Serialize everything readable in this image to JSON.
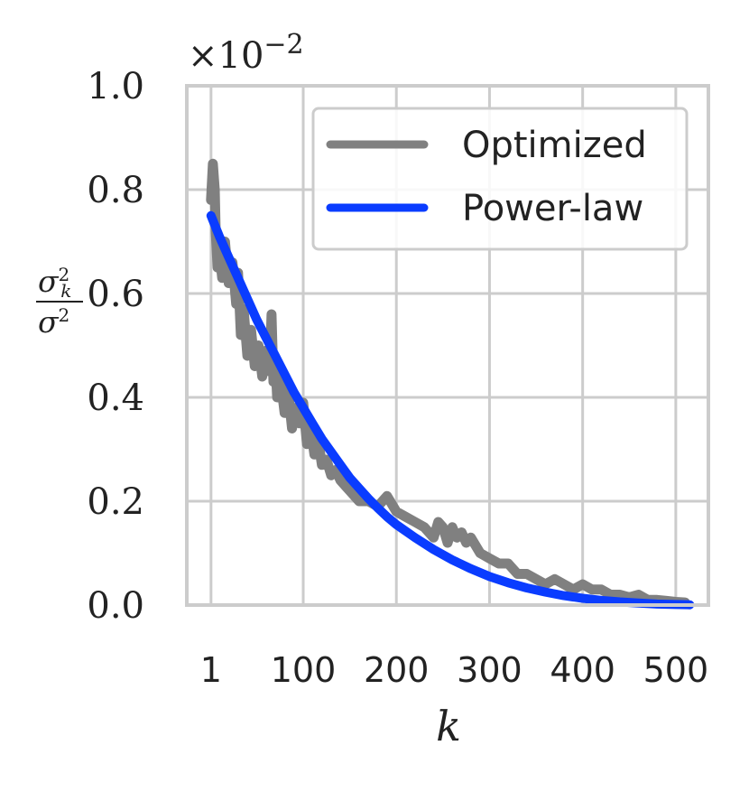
{
  "chart_data": {
    "type": "line",
    "title": "",
    "xlabel": "k",
    "ylabel_numerator": "σ²ₖ",
    "ylabel_denominator": "σ²",
    "ylabel_num_base": "σ",
    "ylabel_num_sup": "2",
    "ylabel_num_sub": "k",
    "ylabel_den_base": "σ",
    "ylabel_den_sup": "2",
    "y_scale_label": "×10",
    "y_scale_exponent": "−2",
    "xlim": [
      -25,
      535
    ],
    "ylim": [
      0.0,
      1.0
    ],
    "x_ticks": [
      1,
      100,
      200,
      300,
      400,
      500
    ],
    "x_tick_labels": [
      "1",
      "100",
      "200",
      "300",
      "400",
      "500"
    ],
    "y_ticks": [
      0.0,
      0.2,
      0.4,
      0.6,
      0.8,
      1.0
    ],
    "y_tick_labels": [
      "0.0",
      "0.2",
      "0.4",
      "0.6",
      "0.8",
      "1.0"
    ],
    "grid": true,
    "legend_position": "top-right",
    "series": [
      {
        "name": "Optimized",
        "color": "#808080",
        "x": [
          1,
          3,
          5,
          6,
          8,
          10,
          13,
          16,
          20,
          24,
          28,
          30,
          33,
          36,
          40,
          44,
          48,
          52,
          56,
          60,
          64,
          66,
          68,
          70,
          72,
          76,
          80,
          84,
          88,
          92,
          96,
          100,
          104,
          108,
          112,
          116,
          120,
          125,
          130,
          135,
          140,
          150,
          160,
          170,
          180,
          190,
          200,
          210,
          220,
          230,
          240,
          245,
          250,
          255,
          260,
          265,
          270,
          275,
          280,
          290,
          300,
          310,
          320,
          330,
          340,
          350,
          360,
          370,
          380,
          390,
          400,
          405,
          410,
          420,
          430,
          440,
          450,
          460,
          470,
          480,
          490,
          500,
          510
        ],
        "values": [
          0.78,
          0.85,
          0.8,
          0.72,
          0.65,
          0.68,
          0.63,
          0.7,
          0.62,
          0.66,
          0.58,
          0.64,
          0.52,
          0.57,
          0.48,
          0.53,
          0.46,
          0.5,
          0.44,
          0.49,
          0.45,
          0.56,
          0.43,
          0.47,
          0.4,
          0.43,
          0.37,
          0.41,
          0.34,
          0.38,
          0.35,
          0.39,
          0.31,
          0.34,
          0.29,
          0.32,
          0.27,
          0.28,
          0.25,
          0.26,
          0.24,
          0.22,
          0.2,
          0.2,
          0.19,
          0.21,
          0.18,
          0.17,
          0.16,
          0.15,
          0.13,
          0.16,
          0.15,
          0.12,
          0.15,
          0.13,
          0.14,
          0.12,
          0.13,
          0.1,
          0.09,
          0.08,
          0.08,
          0.06,
          0.06,
          0.05,
          0.04,
          0.05,
          0.04,
          0.03,
          0.04,
          0.035,
          0.03,
          0.03,
          0.02,
          0.02,
          0.015,
          0.02,
          0.01,
          0.01,
          0.008,
          0.006,
          0.005
        ]
      },
      {
        "name": "Power-law",
        "color": "#0a3cff",
        "x": [
          1,
          10,
          20,
          30,
          40,
          50,
          60,
          70,
          80,
          90,
          100,
          110,
          120,
          130,
          140,
          150,
          160,
          170,
          180,
          190,
          200,
          220,
          240,
          260,
          280,
          300,
          320,
          340,
          360,
          380,
          400,
          420,
          440,
          460,
          480,
          500,
          515
        ],
        "values": [
          0.75,
          0.71,
          0.67,
          0.63,
          0.59,
          0.55,
          0.515,
          0.48,
          0.445,
          0.41,
          0.38,
          0.35,
          0.32,
          0.295,
          0.27,
          0.245,
          0.225,
          0.205,
          0.187,
          0.17,
          0.155,
          0.13,
          0.107,
          0.087,
          0.07,
          0.055,
          0.043,
          0.033,
          0.025,
          0.018,
          0.013,
          0.009,
          0.006,
          0.004,
          0.002,
          0.001,
          0.0005
        ]
      }
    ]
  }
}
